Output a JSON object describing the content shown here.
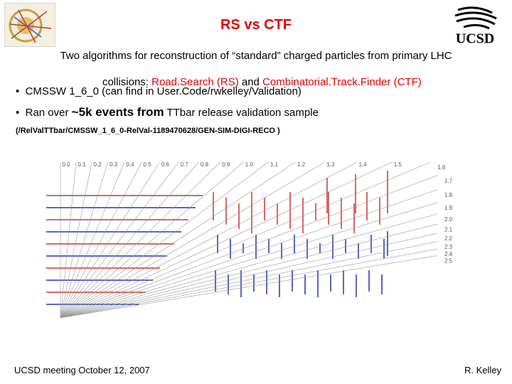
{
  "header": {
    "title": "RS vs CTF",
    "logo_text": "UCSD"
  },
  "intro": {
    "line1": "Two algorithms for reconstruction of “standard” charged particles from primary LHC",
    "line2_parts": [
      "collisions: ",
      "Road.Search (RS)",
      " and ",
      "Combinatorial.Track.Finder (CTF)"
    ]
  },
  "bullets": [
    {
      "parts": [
        "CMSSW 1_6_0 (can find in User.Code/rwkelley/Validation)"
      ]
    },
    {
      "parts": [
        "Ran over ",
        "~5k events from",
        " TTbar release validation sample"
      ]
    }
  ],
  "dataset": "(/RelValTTbar/CMSSW_1_6_0-RelVal-1189470628/GEN-SIM-DIGI-RECO )",
  "figure": {
    "eta_top": [
      "0.0",
      "0.1",
      "0.2",
      "0.3",
      "0.4",
      "0.5",
      "0.6",
      "0.7",
      "0.8",
      "0.9",
      "1.0",
      "1.1",
      "1.2",
      "1.3",
      "1.4",
      "1.5"
    ],
    "eta_right": [
      "1.6",
      "1.7",
      "1.8",
      "1.9",
      "2.0",
      "2.1",
      "2.2",
      "2.3",
      "2.4",
      "2.5"
    ]
  },
  "footer": {
    "left": "UCSD meeting October 12, 2007",
    "right": "R. Kelley"
  }
}
